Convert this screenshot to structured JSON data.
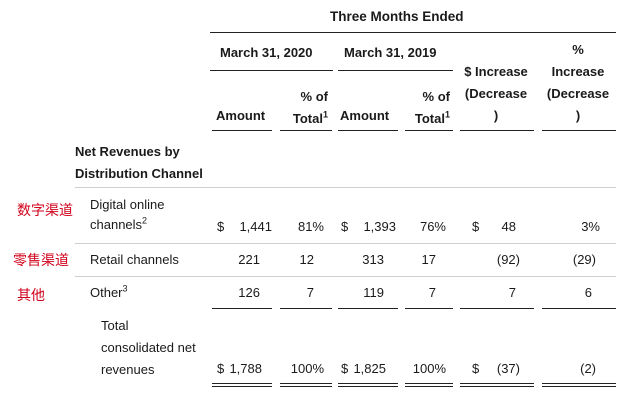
{
  "colors": {
    "annotation_red": "#d0021b",
    "text": "#1a1a1a",
    "rule": "#222222"
  },
  "header": {
    "period": "Three Months Ended",
    "col_2020": "March 31, 2020",
    "col_2019": "March 31, 2019",
    "increase_usd_line1": "$ Increase",
    "increase_usd_line2": "(Decrease",
    "increase_usd_line3": ")",
    "increase_pct_line1": "%",
    "increase_pct_line2": "Increase",
    "increase_pct_line3": "(Decrease",
    "increase_pct_line4": ")",
    "amount": "Amount",
    "pct_of": "% of",
    "total": "Total",
    "footnote_1": "1"
  },
  "section_title_line1": "Net Revenues by",
  "section_title_line2": "Distribution Channel",
  "rows": [
    {
      "annotation": "数字渠道",
      "label_line1": "Digital online",
      "label_line2": "channels",
      "footnote": "2",
      "cur1": "$",
      "amt_2020": "1,441",
      "pct_2020": "81%",
      "cur2": "$",
      "amt_2019": "1,393",
      "pct_2019": "76%",
      "inc_cur": "$",
      "inc_usd": "48",
      "inc_pct": "3%"
    },
    {
      "annotation": "零售渠道",
      "label_line1": "Retail channels",
      "amt_2020": "221",
      "pct_2020": "12",
      "amt_2019": "313",
      "pct_2019": "17",
      "inc_usd": "(92)",
      "inc_pct": "(29)"
    },
    {
      "annotation": "其他",
      "label_line1": "Other",
      "footnote": "3",
      "amt_2020": "126",
      "pct_2020": "7",
      "amt_2019": "119",
      "pct_2019": "7",
      "inc_usd": "7",
      "inc_pct": "6"
    }
  ],
  "total": {
    "label_line1": "Total",
    "label_line2": "consolidated net",
    "label_line3": "revenues",
    "cur1": "$",
    "amt_2020": "1,788",
    "pct_2020": "100%",
    "cur2": "$",
    "amt_2019": "1,825",
    "pct_2019": "100%",
    "inc_cur": "$",
    "inc_usd": "(37)",
    "inc_pct": "(2)"
  }
}
